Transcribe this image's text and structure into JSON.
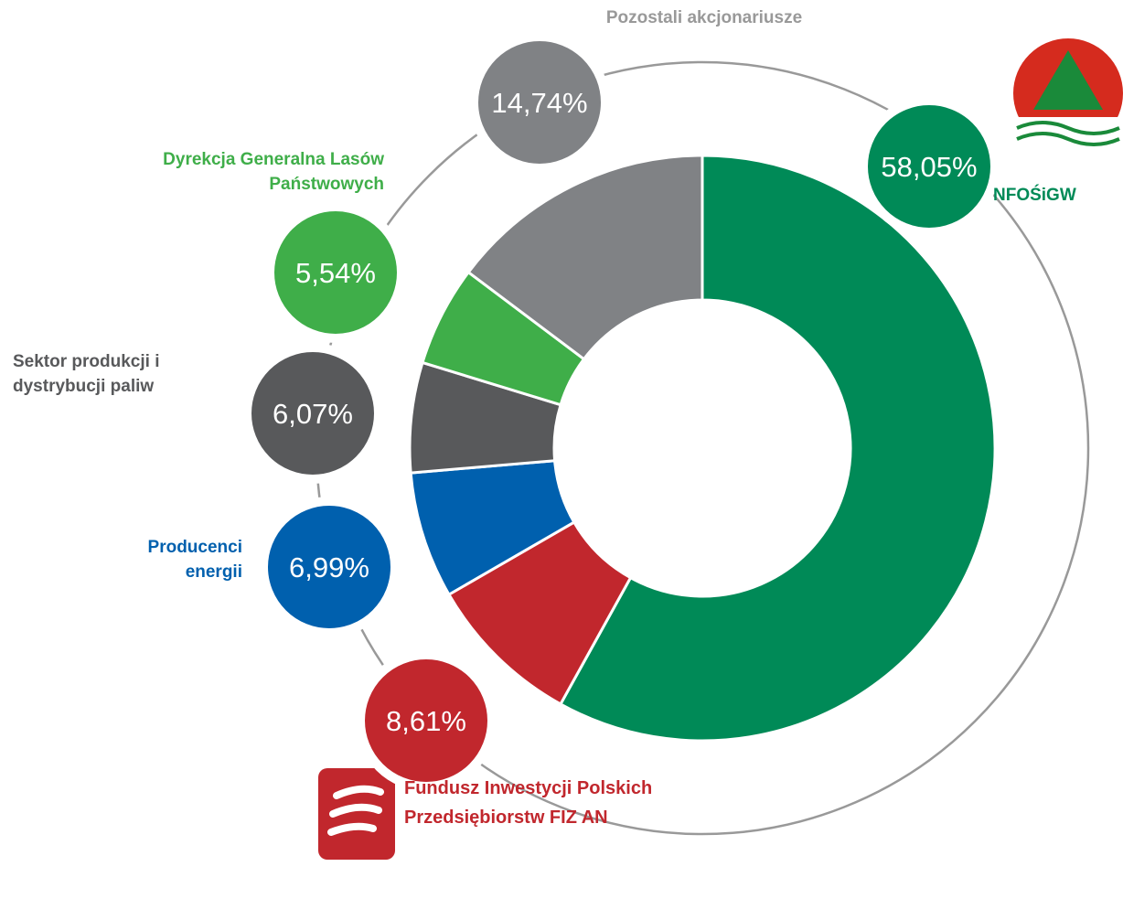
{
  "chart_data": {
    "type": "donut",
    "categories": [
      "NFOŚiGW",
      "Fundusz Inwestycji Polskich Przedsiębiorstw FIZ AN",
      "Producenci energii",
      "Sektor produkcji i dystrybucji paliw",
      "Dyrekcja Generalna Lasów Państwowych",
      "Pozostali akcjonariusze"
    ],
    "values": [
      58.05,
      8.61,
      6.99,
      6.07,
      5.54,
      14.74
    ],
    "value_labels": [
      "58,05%",
      "8,61%",
      "6,99%",
      "6,07%",
      "5,54%",
      "14,74%"
    ],
    "colors": [
      "#008a57",
      "#c1272d",
      "#0060ae",
      "#58595b",
      "#3fae49",
      "#808285"
    ]
  }
}
